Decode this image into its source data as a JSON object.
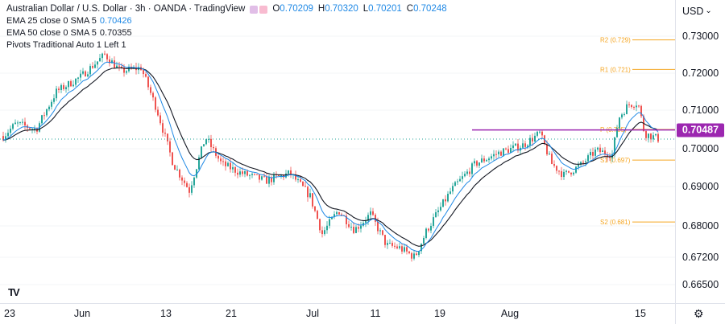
{
  "header": {
    "title": "Australian Dollar / U.S. Dollar · 3h · OANDA · TradingView",
    "ohlc": [
      {
        "label": "O",
        "value": "0.70209"
      },
      {
        "label": "H",
        "value": "0.70320"
      },
      {
        "label": "L",
        "value": "0.70201"
      },
      {
        "label": "C",
        "value": "0.70248"
      }
    ]
  },
  "indicators": [
    {
      "label": "EMA 25 close 0 SMA 5",
      "value": "0.70426",
      "color": "#1e88e5"
    },
    {
      "label": "EMA 50 close 0 SMA 5",
      "value": "0.70355",
      "color": "#131722"
    },
    {
      "label": "Pivots Traditional Auto 1 Left 1",
      "value": "",
      "color": "#131722"
    }
  ],
  "yaxis": {
    "currency": "USD",
    "ticks": [
      "0.73000",
      "0.72000",
      "0.71000",
      "0.70000",
      "0.69000",
      "0.68000",
      "0.67200",
      "0.66500"
    ],
    "current_price": "0.70487"
  },
  "xaxis": {
    "ticks": [
      "23",
      "Jun",
      "13",
      "21",
      "Jul",
      "11",
      "19",
      "Aug",
      "15"
    ]
  },
  "pivots": [
    {
      "label": "R2 (0.729)",
      "color": "#f5a623"
    },
    {
      "label": "R1 (0.721)",
      "color": "#f5a623"
    },
    {
      "label": "P (0.705)",
      "color": "#f5a623"
    },
    {
      "label": "S1 (0.697)",
      "color": "#f5a623"
    },
    {
      "label": "S2 (0.681)",
      "color": "#f5a623"
    }
  ],
  "colors": {
    "up": "#26a69a",
    "down": "#ef5350",
    "ema25": "#1e88e5",
    "ema50": "#131722",
    "price_line": "#9c27b0",
    "pivot": "#f5a623"
  },
  "icons": {
    "logo": "tradingview-logo-icon",
    "settings": "gear-icon",
    "currency_menu": "chevron-down-icon"
  },
  "symbols": {
    "logo": "TV",
    "settings": "⚙",
    "chevron": "⌄"
  }
}
